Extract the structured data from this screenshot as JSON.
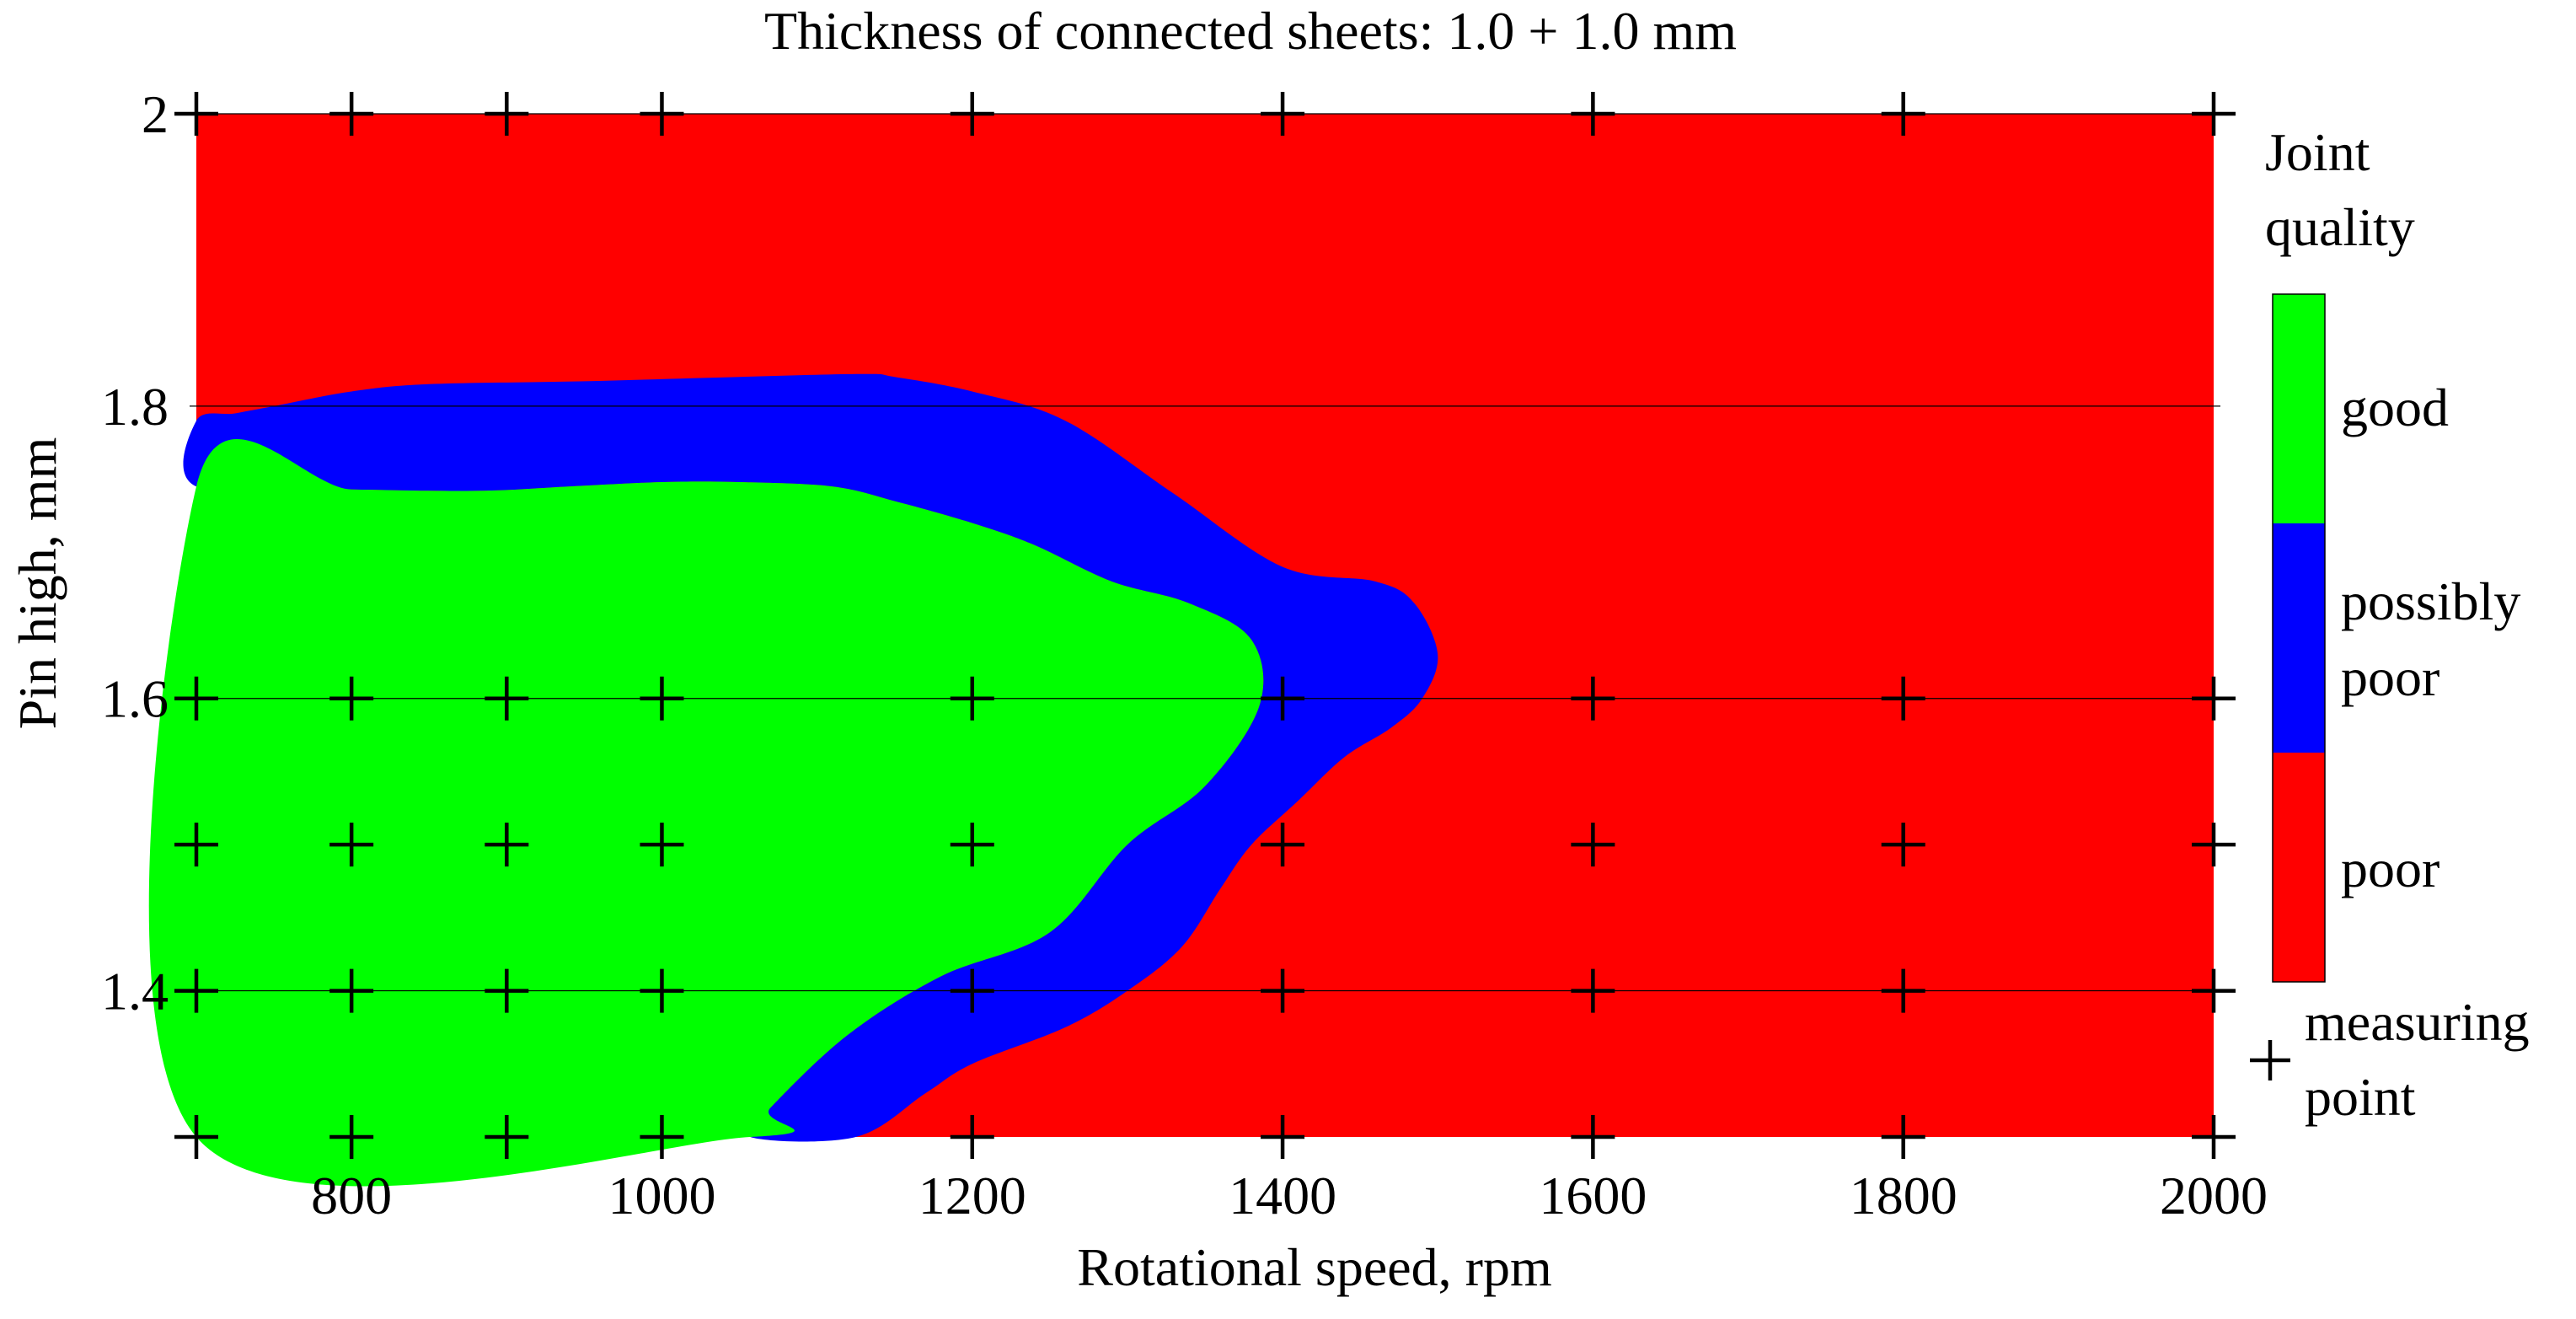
{
  "chart_data": {
    "type": "heatmap",
    "title": "Thickness of connected sheets: 1.0 + 1.0 mm",
    "xlabel": "Rotational speed, rpm",
    "ylabel": "Pin high, mm",
    "xlim": [
      700,
      2000
    ],
    "ylim": [
      1.3,
      2.0
    ],
    "xticks": [
      "800",
      "1000",
      "1200",
      "1400",
      "1600",
      "1800",
      "2000"
    ],
    "xtick_values": [
      800,
      1000,
      1200,
      1400,
      1600,
      1800,
      2000
    ],
    "yticks": [
      "1.4",
      "1.6",
      "1.8",
      "2"
    ],
    "ytick_values": [
      1.4,
      1.6,
      1.8,
      2.0
    ],
    "legend": {
      "title_lines": [
        "Joint",
        "quality"
      ],
      "placement": "right",
      "categories": [
        {
          "label_lines": [
            "good"
          ],
          "color": "#00ff00"
        },
        {
          "label_lines": [
            "possibly",
            "poor"
          ],
          "color": "#0000ff"
        },
        {
          "label_lines": [
            "poor"
          ],
          "color": "#ff0000"
        }
      ],
      "marker_label_lines": [
        "measuring",
        "point"
      ],
      "marker_symbol": "+"
    },
    "regions": [
      {
        "quality": "poor",
        "color": "#ff0000",
        "boundary": [
          [
            700,
            1.3
          ],
          [
            2000,
            1.3
          ],
          [
            2000,
            2.0
          ],
          [
            700,
            2.0
          ]
        ]
      },
      {
        "quality": "possibly poor",
        "color": "#0000ff",
        "boundary": [
          [
            700,
            1.79
          ],
          [
            725,
            1.795
          ],
          [
            750,
            1.8
          ],
          [
            800,
            1.81
          ],
          [
            850,
            1.815
          ],
          [
            950,
            1.817
          ],
          [
            1050,
            1.82
          ],
          [
            1130,
            1.822
          ],
          [
            1150,
            1.82
          ],
          [
            1200,
            1.81
          ],
          [
            1260,
            1.79
          ],
          [
            1330,
            1.74
          ],
          [
            1400,
            1.69
          ],
          [
            1460,
            1.68
          ],
          [
            1485,
            1.665
          ],
          [
            1500,
            1.63
          ],
          [
            1490,
            1.6
          ],
          [
            1470,
            1.58
          ],
          [
            1440,
            1.56
          ],
          [
            1410,
            1.53
          ],
          [
            1380,
            1.5
          ],
          [
            1360,
            1.47
          ],
          [
            1335,
            1.43
          ],
          [
            1300,
            1.4
          ],
          [
            1260,
            1.375
          ],
          [
            1200,
            1.35
          ],
          [
            1170,
            1.33
          ],
          [
            1125,
            1.3
          ],
          [
            1057,
            1.3
          ],
          [
            1070,
            1.32
          ],
          [
            1120,
            1.37
          ],
          [
            1180,
            1.41
          ],
          [
            1250,
            1.44
          ],
          [
            1300,
            1.5
          ],
          [
            1350,
            1.54
          ],
          [
            1385,
            1.595
          ],
          [
            1380,
            1.64
          ],
          [
            1340,
            1.665
          ],
          [
            1290,
            1.68
          ],
          [
            1240,
            1.705
          ],
          [
            1200,
            1.72
          ],
          [
            1150,
            1.735
          ],
          [
            1110,
            1.745
          ],
          [
            1050,
            1.748
          ],
          [
            1000,
            1.748
          ],
          [
            940,
            1.745
          ],
          [
            880,
            1.742
          ],
          [
            800,
            1.743
          ],
          [
            700,
            1.745
          ]
        ]
      },
      {
        "quality": "good",
        "color": "#00ff00",
        "boundary": [
          [
            700,
            1.3
          ],
          [
            1057,
            1.3
          ],
          [
            1070,
            1.32
          ],
          [
            1120,
            1.37
          ],
          [
            1180,
            1.41
          ],
          [
            1250,
            1.44
          ],
          [
            1300,
            1.5
          ],
          [
            1350,
            1.54
          ],
          [
            1385,
            1.595
          ],
          [
            1380,
            1.64
          ],
          [
            1340,
            1.665
          ],
          [
            1290,
            1.68
          ],
          [
            1240,
            1.705
          ],
          [
            1200,
            1.72
          ],
          [
            1150,
            1.735
          ],
          [
            1110,
            1.745
          ],
          [
            1050,
            1.748
          ],
          [
            1000,
            1.748
          ],
          [
            940,
            1.745
          ],
          [
            880,
            1.742
          ],
          [
            800,
            1.743
          ],
          [
            700,
            1.745
          ]
        ]
      }
    ],
    "measuring_points": [
      {
        "x": 700,
        "y": 2.0
      },
      {
        "x": 800,
        "y": 2.0
      },
      {
        "x": 900,
        "y": 2.0
      },
      {
        "x": 1000,
        "y": 2.0
      },
      {
        "x": 1200,
        "y": 2.0
      },
      {
        "x": 1400,
        "y": 2.0
      },
      {
        "x": 1600,
        "y": 2.0
      },
      {
        "x": 1800,
        "y": 2.0
      },
      {
        "x": 2000,
        "y": 2.0
      },
      {
        "x": 700,
        "y": 1.6
      },
      {
        "x": 800,
        "y": 1.6
      },
      {
        "x": 900,
        "y": 1.6
      },
      {
        "x": 1000,
        "y": 1.6
      },
      {
        "x": 1200,
        "y": 1.6
      },
      {
        "x": 1400,
        "y": 1.6
      },
      {
        "x": 1600,
        "y": 1.6
      },
      {
        "x": 1800,
        "y": 1.6
      },
      {
        "x": 2000,
        "y": 1.6
      },
      {
        "x": 700,
        "y": 1.5
      },
      {
        "x": 800,
        "y": 1.5
      },
      {
        "x": 900,
        "y": 1.5
      },
      {
        "x": 1000,
        "y": 1.5
      },
      {
        "x": 1200,
        "y": 1.5
      },
      {
        "x": 1400,
        "y": 1.5
      },
      {
        "x": 1600,
        "y": 1.5
      },
      {
        "x": 1800,
        "y": 1.5
      },
      {
        "x": 2000,
        "y": 1.5
      },
      {
        "x": 700,
        "y": 1.4
      },
      {
        "x": 800,
        "y": 1.4
      },
      {
        "x": 900,
        "y": 1.4
      },
      {
        "x": 1000,
        "y": 1.4
      },
      {
        "x": 1200,
        "y": 1.4
      },
      {
        "x": 1400,
        "y": 1.4
      },
      {
        "x": 1600,
        "y": 1.4
      },
      {
        "x": 1800,
        "y": 1.4
      },
      {
        "x": 2000,
        "y": 1.4
      },
      {
        "x": 700,
        "y": 1.3
      },
      {
        "x": 800,
        "y": 1.3
      },
      {
        "x": 900,
        "y": 1.3
      },
      {
        "x": 1000,
        "y": 1.3
      },
      {
        "x": 1200,
        "y": 1.3
      },
      {
        "x": 1400,
        "y": 1.3
      },
      {
        "x": 1600,
        "y": 1.3
      },
      {
        "x": 1800,
        "y": 1.3
      },
      {
        "x": 2000,
        "y": 1.3
      }
    ]
  }
}
